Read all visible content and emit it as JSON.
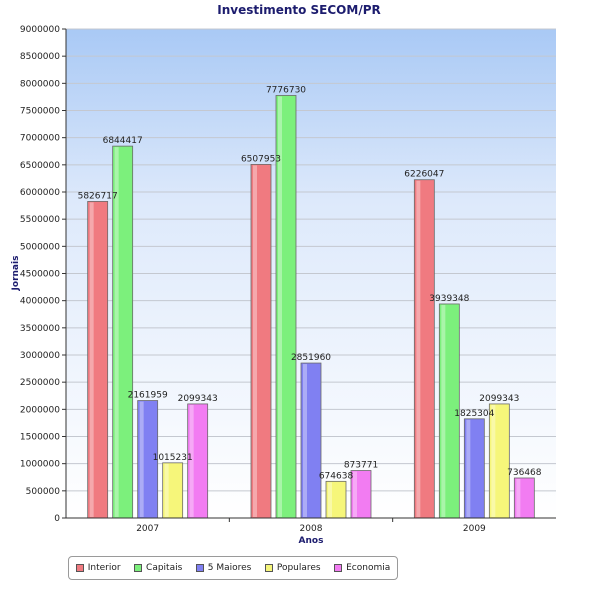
{
  "chart_data": {
    "type": "bar",
    "title": "Investimento SECOM/PR",
    "xlabel": "Anos",
    "ylabel": "Jornais",
    "categories": [
      "2007",
      "2008",
      "2009"
    ],
    "ylim": [
      0,
      9000000
    ],
    "yticks": [
      0,
      500000,
      1000000,
      1500000,
      2000000,
      2500000,
      3000000,
      3500000,
      4000000,
      4500000,
      5000000,
      5500000,
      6000000,
      6500000,
      7000000,
      7500000,
      8000000,
      8500000,
      9000000
    ],
    "grid": true,
    "legend_position": "bottom-left",
    "series": [
      {
        "name": "Interior",
        "color": "#f07a80",
        "values": [
          5826717,
          6507953,
          6226047
        ]
      },
      {
        "name": "Capitais",
        "color": "#7cf07c",
        "values": [
          6844417,
          7776730,
          3939348
        ]
      },
      {
        "name": "5 Maiores",
        "color": "#8080f2",
        "values": [
          2161959,
          2851960,
          1825304
        ]
      },
      {
        "name": "Populares",
        "color": "#f6f67a",
        "values": [
          1015231,
          674638,
          2099343
        ]
      },
      {
        "name": "Economia",
        "color": "#f27cf2",
        "values": [
          2099343,
          873771,
          736468
        ]
      }
    ]
  }
}
